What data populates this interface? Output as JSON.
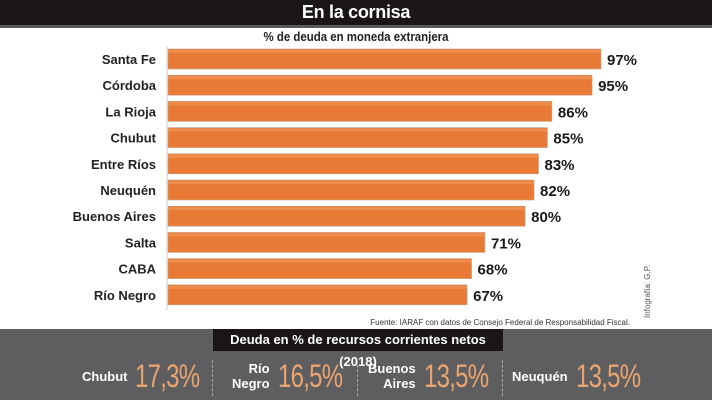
{
  "header": {
    "title": "En la cornisa"
  },
  "chart_data": {
    "type": "bar",
    "orientation": "horizontal",
    "title": "% de deuda en moneda extranjera",
    "categories": [
      "Santa Fe",
      "Córdoba",
      "La Rioja",
      "Chubut",
      "Entre Ríos",
      "Neuquén",
      "Buenos Aires",
      "Salta",
      "CABA",
      "Río Negro"
    ],
    "values": [
      97,
      95,
      86,
      85,
      83,
      82,
      80,
      71,
      68,
      67
    ],
    "value_labels": [
      "97%",
      "95%",
      "86%",
      "85%",
      "83%",
      "82%",
      "80%",
      "71%",
      "68%",
      "67%"
    ],
    "xlabel": "",
    "ylabel": "",
    "xlim": [
      0,
      100
    ],
    "grid": false,
    "bar_color": "#e87a35"
  },
  "source": "Fuente: IARAF con datos de Consejo Federal de Responsabilidad Fiscal.",
  "credit": "Infografía: G.P.",
  "bottom": {
    "title": "Deuda en % de recursos corrientes netos (2018)",
    "stats": [
      {
        "name_lines": [
          "Chubut"
        ],
        "value": "17,3%"
      },
      {
        "name_lines": [
          "Río",
          "Negro"
        ],
        "value": "16,5%"
      },
      {
        "name_lines": [
          "Buenos",
          "Aires"
        ],
        "value": "13,5%"
      },
      {
        "name_lines": [
          "Neuquén"
        ],
        "value": "13,5%"
      }
    ]
  }
}
